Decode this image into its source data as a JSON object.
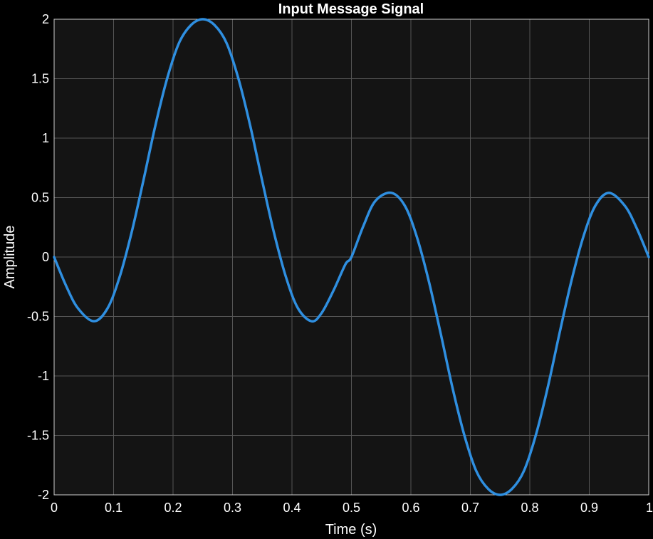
{
  "colors": {
    "page_background": "#000000",
    "plot_background": "#141414",
    "grid": "#555555",
    "axis": "#cccccc",
    "line": "#2f8fe0",
    "text": "#ffffff"
  },
  "chart_data": {
    "type": "line",
    "title": "Input Message Signal",
    "xlabel": "Time (s)",
    "ylabel": "Amplitude",
    "xlim": [
      0,
      1
    ],
    "ylim": [
      -2,
      2
    ],
    "grid": true,
    "x_ticks": [
      0,
      0.1,
      0.2,
      0.3,
      0.4,
      0.5,
      0.6,
      0.7,
      0.8,
      0.9,
      1
    ],
    "x_tick_labels": [
      "0",
      "0.1",
      "0.2",
      "0.3",
      "0.4",
      "0.5",
      "0.6",
      "0.7",
      "0.8",
      "0.9",
      "1"
    ],
    "y_ticks": [
      -2,
      -1.5,
      -1,
      -0.5,
      0,
      0.5,
      1,
      1.5,
      2
    ],
    "y_tick_labels": [
      "-2",
      "-1.5",
      "-1",
      "-0.5",
      "0",
      "0.5",
      "1",
      "1.5",
      "2"
    ],
    "series": [
      {
        "x": [
          0,
          0.02,
          0.04,
          0.067,
          0.09,
          0.11,
          0.13,
          0.15,
          0.17,
          0.19,
          0.21,
          0.23,
          0.25,
          0.27,
          0.29,
          0.31,
          0.33,
          0.35,
          0.37,
          0.39,
          0.41,
          0.433,
          0.45,
          0.47,
          0.49,
          0.5,
          0.52,
          0.54,
          0.567,
          0.59,
          0.61,
          0.63,
          0.65,
          0.67,
          0.69,
          0.71,
          0.73,
          0.75,
          0.77,
          0.79,
          0.81,
          0.83,
          0.85,
          0.87,
          0.89,
          0.91,
          0.933,
          0.96,
          0.98,
          1
        ],
        "y": [
          0,
          -0.24,
          -0.43,
          -0.54,
          -0.43,
          -0.17,
          0.2,
          0.64,
          1.1,
          1.5,
          1.8,
          1.95,
          2,
          1.95,
          1.8,
          1.5,
          1.1,
          0.64,
          0.2,
          -0.17,
          -0.43,
          -0.54,
          -0.47,
          -0.28,
          -0.06,
          0,
          0.26,
          0.47,
          0.54,
          0.43,
          0.17,
          -0.2,
          -0.64,
          -1.1,
          -1.5,
          -1.8,
          -1.95,
          -2,
          -1.95,
          -1.8,
          -1.5,
          -1.1,
          -0.64,
          -0.2,
          0.17,
          0.43,
          0.54,
          0.43,
          0.24,
          0
        ]
      }
    ]
  }
}
